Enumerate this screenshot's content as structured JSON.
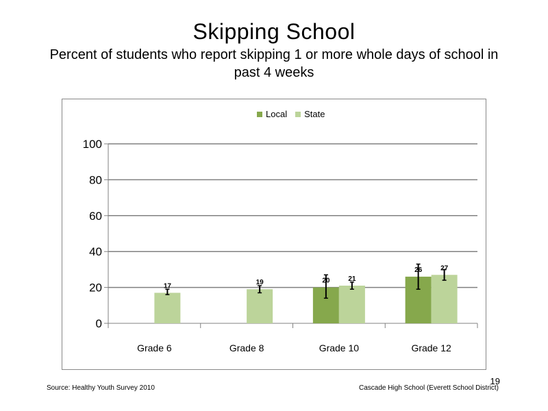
{
  "title": "Skipping School",
  "subtitle": "Percent of students who report skipping 1 or more whole days of school in past 4 weeks",
  "footer": {
    "source": "Source: Healthy Youth Survey 2010",
    "school": "Cascade High School (Everett School District)",
    "page_number": "19"
  },
  "colors": {
    "local": "#86a84c",
    "state": "#bcd49a",
    "gridline": "#808080",
    "error_bar": "#000000"
  },
  "chart_data": {
    "type": "bar",
    "categories": [
      "Grade 6",
      "Grade 8",
      "Grade 10",
      "Grade 12"
    ],
    "series": [
      {
        "name": "Local",
        "values": [
          null,
          null,
          20,
          26
        ],
        "error_low": [
          null,
          null,
          14,
          19
        ],
        "error_high": [
          null,
          null,
          27,
          33
        ]
      },
      {
        "name": "State",
        "values": [
          17,
          19,
          21,
          27
        ],
        "error_low": [
          16,
          17,
          19,
          24
        ],
        "error_high": [
          19,
          21,
          23,
          30
        ]
      }
    ],
    "data_labels": [
      [
        "",
        "",
        "20",
        "26"
      ],
      [
        "17",
        "19",
        "21",
        "27"
      ]
    ],
    "yticks": [
      "0",
      "20",
      "40",
      "60",
      "80",
      "100"
    ],
    "ylim": [
      0,
      100
    ],
    "legend_position": "top-center",
    "grid": true
  }
}
